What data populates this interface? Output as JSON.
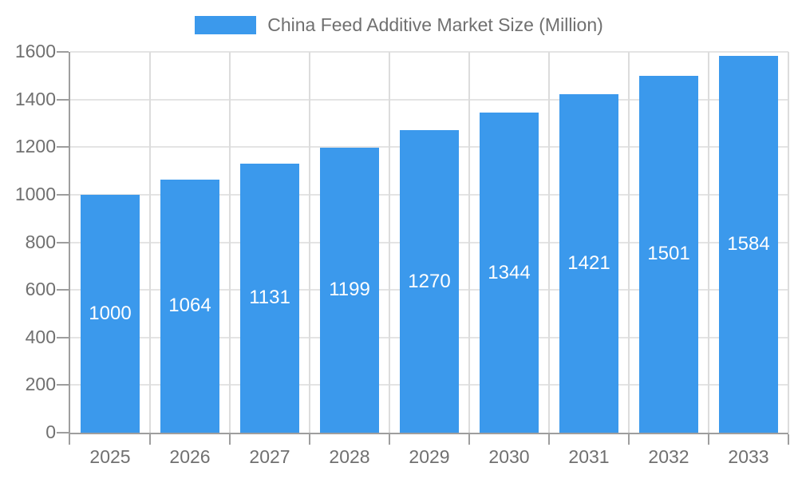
{
  "chart_data": {
    "type": "bar",
    "legend_label": "China Feed Additive Market Size (Million)",
    "categories": [
      "2025",
      "2026",
      "2027",
      "2028",
      "2029",
      "2030",
      "2031",
      "2032",
      "2033"
    ],
    "values": [
      1000,
      1064,
      1131,
      1199,
      1270,
      1344,
      1421,
      1501,
      1584
    ],
    "title": "",
    "xlabel": "",
    "ylabel": "",
    "ylim": [
      0,
      1600
    ],
    "yticks": [
      0,
      200,
      400,
      600,
      800,
      1000,
      1200,
      1400,
      1600
    ],
    "grid": true,
    "legend_position": "top-center",
    "bar_color": "#3B99EC",
    "value_label_color": "#FFFFFF",
    "axis_text_color": "#707070",
    "axis_line_color": "#9E9E9E",
    "hgrid_color": "#E4E4E4",
    "vgrid_color": "#DCDCDC",
    "background_color": "#FFFFFF"
  }
}
